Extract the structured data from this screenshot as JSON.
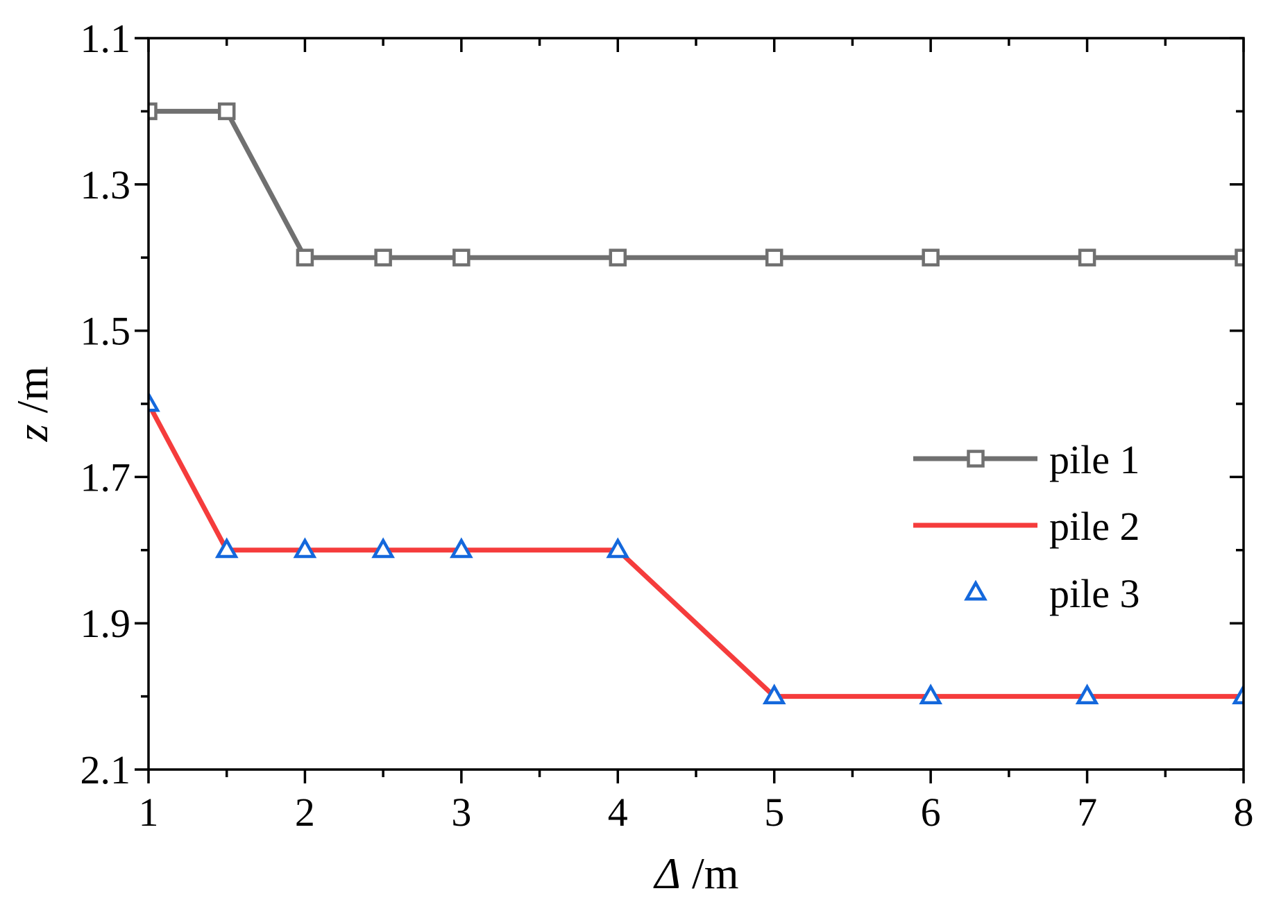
{
  "chart_data": {
    "type": "line",
    "x": [
      1,
      1.5,
      2,
      2.5,
      3,
      4,
      5,
      6,
      7,
      8
    ],
    "series": [
      {
        "name": "pile 1",
        "values": [
          1.2,
          1.2,
          1.4,
          1.4,
          1.4,
          1.4,
          1.4,
          1.4,
          1.4,
          1.4
        ],
        "color": "#707070",
        "marker": "square",
        "line": true
      },
      {
        "name": "pile 2",
        "values": [
          1.6,
          1.8,
          1.8,
          1.8,
          1.8,
          1.8,
          2.0,
          2.0,
          2.0,
          2.0
        ],
        "color": "#f53c3c",
        "marker": "none",
        "line": true
      },
      {
        "name": "pile 3",
        "values": [
          1.6,
          1.8,
          1.8,
          1.8,
          1.8,
          1.8,
          2.0,
          2.0,
          2.0,
          2.0
        ],
        "color": "#1468dc",
        "marker": "triangle",
        "line": false
      }
    ],
    "xlabel_symbol": "Δ",
    "xlabel_unit": "/m",
    "ylabel_symbol": "z",
    "ylabel_unit": "/m",
    "xlim": [
      1,
      8
    ],
    "ylim": [
      1.1,
      2.1
    ],
    "y_inverted": true,
    "xticks": [
      1,
      2,
      3,
      4,
      5,
      6,
      7,
      8
    ],
    "xtick_labels": [
      "1",
      "2",
      "3",
      "4",
      "5",
      "6",
      "7",
      "8"
    ],
    "xminor": [
      1.5,
      2.5,
      3.5,
      4.5,
      5.5,
      6.5,
      7.5
    ],
    "yticks": [
      1.1,
      1.3,
      1.5,
      1.7,
      1.9,
      2.1
    ],
    "ytick_labels": [
      "1.1",
      "1.3",
      "1.5",
      "1.7",
      "1.9",
      "2.1"
    ],
    "yminor": [
      1.2,
      1.4,
      1.6,
      1.8,
      2.0
    ],
    "grid": false,
    "legend_position": "right"
  }
}
